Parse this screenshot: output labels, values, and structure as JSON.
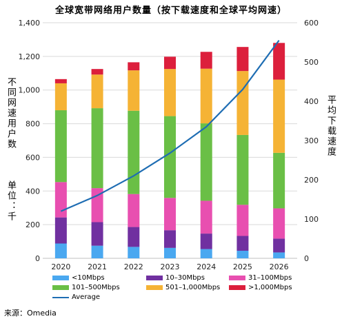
{
  "title": "全球宽带网络用户数量（按下载速度和全球平均网速）",
  "left_axis_label": "不同网速用户数",
  "left_unit_label": "单位：千",
  "right_axis_label": "平均下载速度",
  "source": "来源：Omedia",
  "colors": {
    "lt10": "#4aa8f0",
    "10_30": "#7030a0",
    "31_100": "#e84fb0",
    "101_500": "#6abf46",
    "501_1000": "#f5b335",
    "gt1000": "#dc1f3c",
    "average": "#1e6db3"
  },
  "chart_data": {
    "type": "bar",
    "stacked": true,
    "categories": [
      "2020",
      "2021",
      "2022",
      "2023",
      "2024",
      "2025",
      "2026"
    ],
    "y_left": {
      "min": 0,
      "max": 1400,
      "ticks": [
        "0",
        "200",
        "400",
        "600",
        "800",
        "1,000",
        "1,200",
        "1,400"
      ]
    },
    "y_right": {
      "min": 0,
      "max": 600,
      "ticks": [
        "0",
        "100",
        "200",
        "300",
        "400",
        "500",
        "600"
      ]
    },
    "series": [
      {
        "name": "<10Mbps",
        "key": "lt10",
        "values": [
          88,
          75,
          68,
          62,
          55,
          45,
          35
        ]
      },
      {
        "name": "10–30Mbps",
        "key": "10_30",
        "values": [
          155,
          140,
          118,
          105,
          92,
          88,
          82
        ]
      },
      {
        "name": "31–100Mbps",
        "key": "31_100",
        "values": [
          210,
          202,
          196,
          192,
          195,
          185,
          180
        ]
      },
      {
        "name": "101–500Mbps",
        "key": "101_500",
        "values": [
          427,
          475,
          495,
          486,
          460,
          415,
          330
        ]
      },
      {
        "name": "501–1,000Mbps",
        "key": "501_1000",
        "values": [
          160,
          200,
          240,
          280,
          325,
          380,
          435
        ]
      },
      {
        "name": ">1,000Mbps",
        "key": "gt1000",
        "values": [
          25,
          33,
          48,
          73,
          100,
          143,
          218
        ]
      }
    ],
    "line": {
      "name": "Average",
      "axis": "right",
      "values": [
        120,
        160,
        210,
        268,
        335,
        430,
        555
      ]
    },
    "grid": true,
    "legend_position": "bottom"
  }
}
